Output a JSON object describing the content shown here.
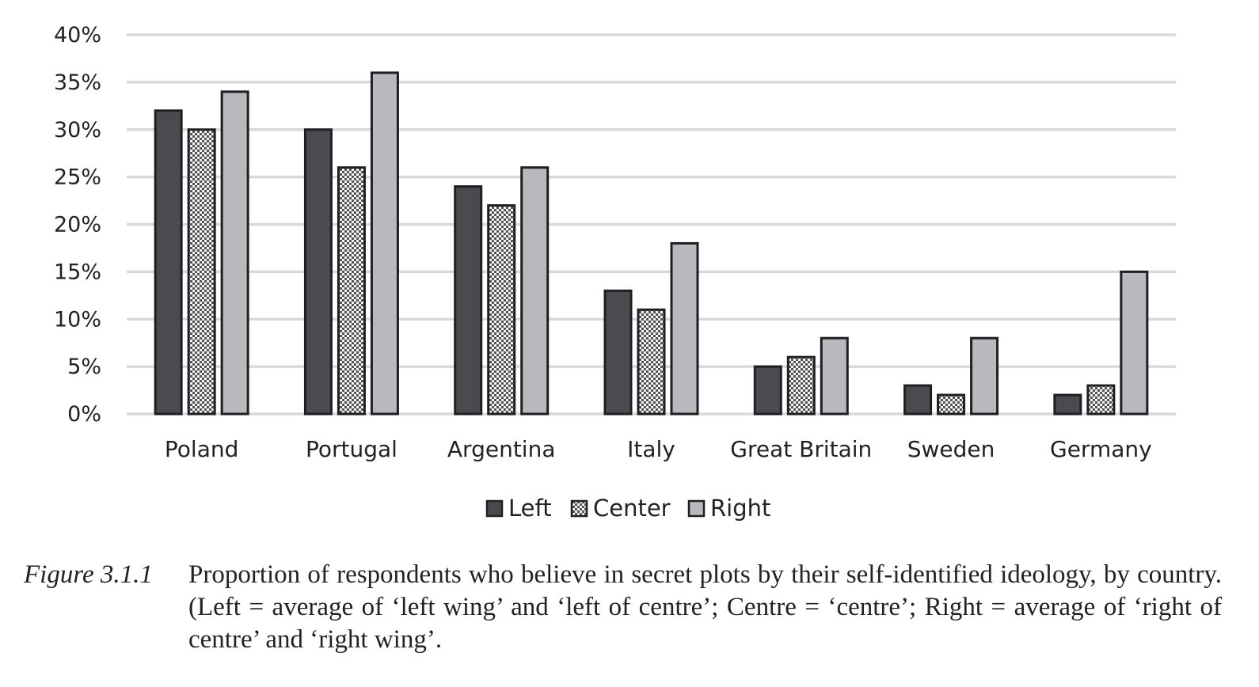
{
  "chart_data": {
    "type": "bar",
    "categories": [
      "Poland",
      "Portugal",
      "Argentina",
      "Italy",
      "Great Britain",
      "Sweden",
      "Germany"
    ],
    "series": [
      {
        "name": "Left",
        "values": [
          32,
          30,
          24,
          13,
          5,
          3,
          2
        ],
        "color": "#4a4b4f",
        "pattern": "solid"
      },
      {
        "name": "Center",
        "values": [
          30,
          26,
          22,
          11,
          6,
          2,
          3
        ],
        "color": "#ffffff",
        "pattern": "checker"
      },
      {
        "name": "Right",
        "values": [
          34,
          36,
          26,
          18,
          8,
          8,
          15
        ],
        "color": "#b8b9bc",
        "pattern": "solid"
      }
    ],
    "y_ticks": [
      "0%",
      "5%",
      "10%",
      "15%",
      "20%",
      "25%",
      "30%",
      "35%",
      "40%"
    ],
    "ylim": [
      0,
      40
    ],
    "grid": true,
    "legend_position": "bottom"
  },
  "caption": {
    "label": "Figure 3.1.1",
    "text": "Proportion of respondents who believe in secret plots by their self-identified ideology, by country. (Left = average of ‘left wing’ and ‘left of centre’; Centre = ‘centre’; Right = average of ‘right of centre’ and ‘right wing’."
  }
}
